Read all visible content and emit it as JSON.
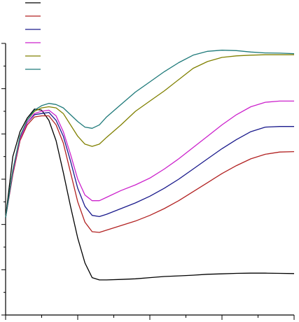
{
  "chart_data": {
    "type": "line",
    "title": "",
    "xlabel": "",
    "ylabel": "",
    "x_range": [
      0,
      20
    ],
    "y_range": [
      0,
      12
    ],
    "grid": false,
    "legend_placement": "top-left",
    "series": [
      {
        "color": "#000000",
        "points": [
          [
            0,
            4.3
          ],
          [
            0.5,
            7.0
          ],
          [
            1.0,
            8.1
          ],
          [
            1.5,
            8.7
          ],
          [
            2.0,
            9.1
          ],
          [
            2.5,
            9.05
          ],
          [
            3.0,
            8.6
          ],
          [
            3.5,
            7.7
          ],
          [
            4.0,
            6.3
          ],
          [
            4.5,
            4.8
          ],
          [
            5.0,
            3.4
          ],
          [
            5.5,
            2.3
          ],
          [
            6.0,
            1.65
          ],
          [
            6.5,
            1.55
          ],
          [
            7.0,
            1.55
          ],
          [
            8.0,
            1.57
          ],
          [
            9.0,
            1.6
          ],
          [
            10.0,
            1.65
          ],
          [
            11.0,
            1.7
          ],
          [
            12.0,
            1.73
          ],
          [
            13.0,
            1.76
          ],
          [
            14.0,
            1.8
          ],
          [
            15.0,
            1.82
          ],
          [
            16.0,
            1.84
          ],
          [
            17.0,
            1.85
          ],
          [
            18.0,
            1.85
          ],
          [
            19.0,
            1.84
          ],
          [
            20.0,
            1.83
          ]
        ]
      },
      {
        "color": "#b22222",
        "points": [
          [
            0,
            4.3
          ],
          [
            0.5,
            6.2
          ],
          [
            1.0,
            7.7
          ],
          [
            1.5,
            8.4
          ],
          [
            2.0,
            8.75
          ],
          [
            2.5,
            8.8
          ],
          [
            3.0,
            8.8
          ],
          [
            3.5,
            8.4
          ],
          [
            4.0,
            7.6
          ],
          [
            4.5,
            6.3
          ],
          [
            5.0,
            5.0
          ],
          [
            5.5,
            4.1
          ],
          [
            6.0,
            3.68
          ],
          [
            6.5,
            3.65
          ],
          [
            7.0,
            3.75
          ],
          [
            8.0,
            3.95
          ],
          [
            9.0,
            4.15
          ],
          [
            10.0,
            4.4
          ],
          [
            11.0,
            4.7
          ],
          [
            12.0,
            5.05
          ],
          [
            13.0,
            5.45
          ],
          [
            14.0,
            5.85
          ],
          [
            15.0,
            6.25
          ],
          [
            16.0,
            6.6
          ],
          [
            17.0,
            6.9
          ],
          [
            18.0,
            7.1
          ],
          [
            19.0,
            7.2
          ],
          [
            20.0,
            7.22
          ]
        ]
      },
      {
        "color": "#1a1a8c",
        "points": [
          [
            0,
            4.3
          ],
          [
            0.5,
            6.3
          ],
          [
            1.0,
            7.8
          ],
          [
            1.5,
            8.5
          ],
          [
            2.0,
            8.85
          ],
          [
            2.5,
            8.9
          ],
          [
            3.0,
            8.95
          ],
          [
            3.5,
            8.6
          ],
          [
            4.0,
            7.9
          ],
          [
            4.5,
            6.8
          ],
          [
            5.0,
            5.6
          ],
          [
            5.5,
            4.8
          ],
          [
            6.0,
            4.4
          ],
          [
            6.5,
            4.35
          ],
          [
            7.0,
            4.45
          ],
          [
            8.0,
            4.7
          ],
          [
            9.0,
            4.95
          ],
          [
            10.0,
            5.25
          ],
          [
            11.0,
            5.6
          ],
          [
            12.0,
            6.0
          ],
          [
            13.0,
            6.45
          ],
          [
            14.0,
            6.9
          ],
          [
            15.0,
            7.35
          ],
          [
            16.0,
            7.75
          ],
          [
            17.0,
            8.1
          ],
          [
            18.0,
            8.3
          ],
          [
            19.0,
            8.33
          ],
          [
            20.0,
            8.33
          ]
        ]
      },
      {
        "color": "#cc22cc",
        "points": [
          [
            0,
            4.3
          ],
          [
            0.5,
            6.3
          ],
          [
            1.0,
            7.8
          ],
          [
            1.5,
            8.5
          ],
          [
            2.0,
            8.9
          ],
          [
            2.5,
            9.0
          ],
          [
            3.0,
            9.05
          ],
          [
            3.5,
            8.8
          ],
          [
            4.0,
            8.1
          ],
          [
            4.5,
            7.1
          ],
          [
            5.0,
            6.0
          ],
          [
            5.5,
            5.3
          ],
          [
            6.0,
            5.05
          ],
          [
            6.5,
            5.05
          ],
          [
            7.0,
            5.2
          ],
          [
            8.0,
            5.5
          ],
          [
            9.0,
            5.75
          ],
          [
            10.0,
            6.05
          ],
          [
            11.0,
            6.45
          ],
          [
            12.0,
            6.9
          ],
          [
            13.0,
            7.4
          ],
          [
            14.0,
            7.9
          ],
          [
            15.0,
            8.4
          ],
          [
            16.0,
            8.85
          ],
          [
            17.0,
            9.2
          ],
          [
            18.0,
            9.4
          ],
          [
            19.0,
            9.45
          ],
          [
            20.0,
            9.45
          ]
        ]
      },
      {
        "color": "#808000",
        "points": [
          [
            0,
            4.3
          ],
          [
            0.5,
            6.4
          ],
          [
            1.0,
            7.9
          ],
          [
            1.5,
            8.6
          ],
          [
            2.0,
            9.0
          ],
          [
            2.5,
            9.15
          ],
          [
            3.0,
            9.2
          ],
          [
            3.5,
            9.15
          ],
          [
            4.0,
            8.9
          ],
          [
            4.5,
            8.4
          ],
          [
            5.0,
            7.9
          ],
          [
            5.5,
            7.55
          ],
          [
            6.0,
            7.45
          ],
          [
            6.5,
            7.55
          ],
          [
            7.0,
            7.85
          ],
          [
            8.0,
            8.4
          ],
          [
            9.0,
            9.0
          ],
          [
            10.0,
            9.45
          ],
          [
            11.0,
            9.9
          ],
          [
            12.0,
            10.4
          ],
          [
            13.0,
            10.9
          ],
          [
            14.0,
            11.2
          ],
          [
            15.0,
            11.38
          ],
          [
            16.0,
            11.45
          ],
          [
            17.0,
            11.48
          ],
          [
            18.0,
            11.5
          ],
          [
            19.0,
            11.5
          ],
          [
            20.0,
            11.5
          ]
        ]
      },
      {
        "color": "#1f7a7a",
        "points": [
          [
            0,
            4.3
          ],
          [
            0.5,
            6.4
          ],
          [
            1.0,
            7.9
          ],
          [
            1.5,
            8.6
          ],
          [
            2.0,
            9.05
          ],
          [
            2.5,
            9.25
          ],
          [
            3.0,
            9.35
          ],
          [
            3.5,
            9.3
          ],
          [
            4.0,
            9.15
          ],
          [
            4.5,
            8.85
          ],
          [
            5.0,
            8.55
          ],
          [
            5.5,
            8.3
          ],
          [
            6.0,
            8.25
          ],
          [
            6.5,
            8.4
          ],
          [
            7.0,
            8.75
          ],
          [
            8.0,
            9.3
          ],
          [
            9.0,
            9.85
          ],
          [
            10.0,
            10.3
          ],
          [
            11.0,
            10.75
          ],
          [
            12.0,
            11.15
          ],
          [
            13.0,
            11.48
          ],
          [
            14.0,
            11.65
          ],
          [
            15.0,
            11.7
          ],
          [
            16.0,
            11.68
          ],
          [
            17.0,
            11.62
          ],
          [
            18.0,
            11.58
          ],
          [
            19.0,
            11.57
          ],
          [
            20.0,
            11.55
          ]
        ]
      }
    ]
  }
}
